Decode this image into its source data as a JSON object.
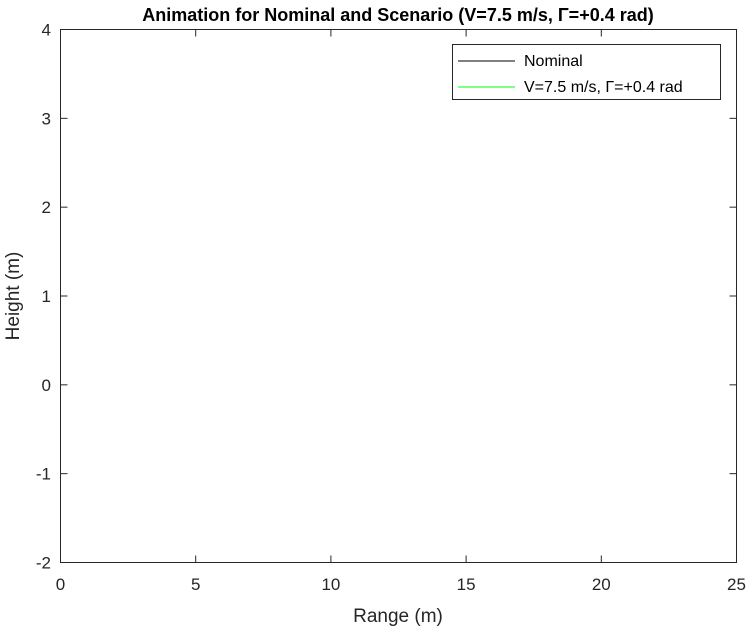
{
  "chart_data": {
    "type": "line",
    "title": "Animation for Nominal and Scenario (V=7.5 m/s, Γ=+0.4 rad)",
    "xlabel": "Range (m)",
    "ylabel": "Height (m)",
    "xlim": [
      0,
      25
    ],
    "ylim": [
      -2,
      4
    ],
    "xticks": [
      "0",
      "5",
      "10",
      "15",
      "20",
      "25"
    ],
    "yticks": [
      "-2",
      "-1",
      "0",
      "1",
      "2",
      "3",
      "4"
    ],
    "grid": false,
    "legend_location": "top-right",
    "series": [
      {
        "name": "Nominal",
        "color": "#000000",
        "x": [],
        "y": []
      },
      {
        "name": "V=7.5 m/s, Γ=+0.4 rad",
        "color": "#00ff00",
        "x": [],
        "y": []
      }
    ]
  }
}
